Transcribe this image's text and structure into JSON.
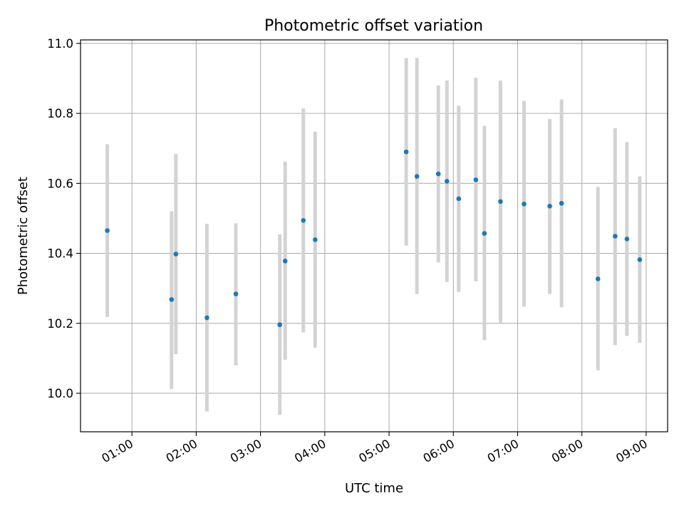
{
  "chart_data": {
    "type": "scatter",
    "title": "Photometric offset variation",
    "xlabel": "UTC time",
    "ylabel": "Photometric offset",
    "x_axis_type": "time",
    "xlim": [
      "00:12",
      "09:20"
    ],
    "ylim": [
      9.89,
      11.01
    ],
    "xticks": [
      {
        "time": "01:00",
        "label": "01:00"
      },
      {
        "time": "02:00",
        "label": "02:00"
      },
      {
        "time": "03:00",
        "label": "03:00"
      },
      {
        "time": "04:00",
        "label": "04:00"
      },
      {
        "time": "05:00",
        "label": "05:00"
      },
      {
        "time": "06:00",
        "label": "06:00"
      },
      {
        "time": "07:00",
        "label": "07:00"
      },
      {
        "time": "08:00",
        "label": "08:00"
      },
      {
        "time": "09:00",
        "label": "09:00"
      }
    ],
    "yticks": [
      {
        "value": 10.0,
        "label": "10.0"
      },
      {
        "value": 10.2,
        "label": "10.2"
      },
      {
        "value": 10.4,
        "label": "10.4"
      },
      {
        "value": 10.6,
        "label": "10.6"
      },
      {
        "value": 10.8,
        "label": "10.8"
      },
      {
        "value": 11.0,
        "label": "11.0"
      }
    ],
    "grid": true,
    "legend": "none",
    "colors": {
      "point": "#1f77b4",
      "errorbar": "#d3d3d3"
    },
    "series": [
      {
        "points": [
          {
            "time": "00:37",
            "y": 10.465,
            "lo": 10.218,
            "hi": 10.712
          },
          {
            "time": "01:37",
            "y": 10.268,
            "lo": 10.012,
            "hi": 10.52
          },
          {
            "time": "01:41",
            "y": 10.398,
            "lo": 10.112,
            "hi": 10.684
          },
          {
            "time": "02:10",
            "y": 10.216,
            "lo": 9.948,
            "hi": 10.484
          },
          {
            "time": "02:37",
            "y": 10.284,
            "lo": 10.08,
            "hi": 10.486
          },
          {
            "time": "03:18",
            "y": 10.196,
            "lo": 9.938,
            "hi": 10.454
          },
          {
            "time": "03:23",
            "y": 10.378,
            "lo": 10.096,
            "hi": 10.662
          },
          {
            "time": "03:40",
            "y": 10.494,
            "lo": 10.174,
            "hi": 10.814
          },
          {
            "time": "03:51",
            "y": 10.439,
            "lo": 10.13,
            "hi": 10.748
          },
          {
            "time": "05:16",
            "y": 10.69,
            "lo": 10.422,
            "hi": 10.958
          },
          {
            "time": "05:26",
            "y": 10.62,
            "lo": 10.284,
            "hi": 10.958
          },
          {
            "time": "05:46",
            "y": 10.627,
            "lo": 10.374,
            "hi": 10.88
          },
          {
            "time": "05:54",
            "y": 10.606,
            "lo": 10.318,
            "hi": 10.894
          },
          {
            "time": "06:05",
            "y": 10.556,
            "lo": 10.29,
            "hi": 10.822
          },
          {
            "time": "06:21",
            "y": 10.61,
            "lo": 10.32,
            "hi": 10.902
          },
          {
            "time": "06:29",
            "y": 10.457,
            "lo": 10.152,
            "hi": 10.764
          },
          {
            "time": "06:44",
            "y": 10.548,
            "lo": 10.202,
            "hi": 10.894
          },
          {
            "time": "07:06",
            "y": 10.541,
            "lo": 10.248,
            "hi": 10.836
          },
          {
            "time": "07:30",
            "y": 10.535,
            "lo": 10.284,
            "hi": 10.784
          },
          {
            "time": "07:41",
            "y": 10.543,
            "lo": 10.246,
            "hi": 10.84
          },
          {
            "time": "08:15",
            "y": 10.327,
            "lo": 10.066,
            "hi": 10.59
          },
          {
            "time": "08:31",
            "y": 10.449,
            "lo": 10.138,
            "hi": 10.758
          },
          {
            "time": "08:42",
            "y": 10.441,
            "lo": 10.164,
            "hi": 10.718
          },
          {
            "time": "08:54",
            "y": 10.382,
            "lo": 10.144,
            "hi": 10.62
          }
        ]
      }
    ]
  }
}
